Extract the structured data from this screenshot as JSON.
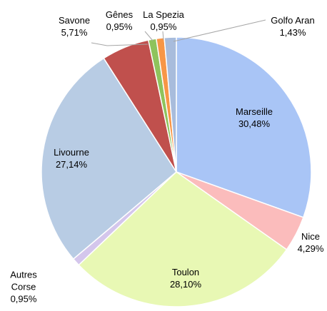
{
  "chart_data": {
    "type": "pie",
    "categories": [
      "Marseille",
      "Nice",
      "Toulon",
      "Autres Corse",
      "Livourne",
      "Savone",
      "Gênes",
      "La Spezia",
      "Golfo Aran"
    ],
    "values": [
      30.48,
      4.29,
      28.1,
      0.95,
      27.14,
      5.71,
      0.95,
      0.95,
      1.43
    ],
    "value_labels": [
      "30,48%",
      "4,29%",
      "28,10%",
      "0,95%",
      "27,14%",
      "5,71%",
      "0,95%",
      "0,95%",
      "1,43%"
    ],
    "colors": [
      "#a9c5f6",
      "#fbbcbc",
      "#e8f8b4",
      "#d4c6ec",
      "#b8cce4",
      "#c0504d",
      "#8fc35c",
      "#f79646",
      "#a8bcdc"
    ]
  }
}
